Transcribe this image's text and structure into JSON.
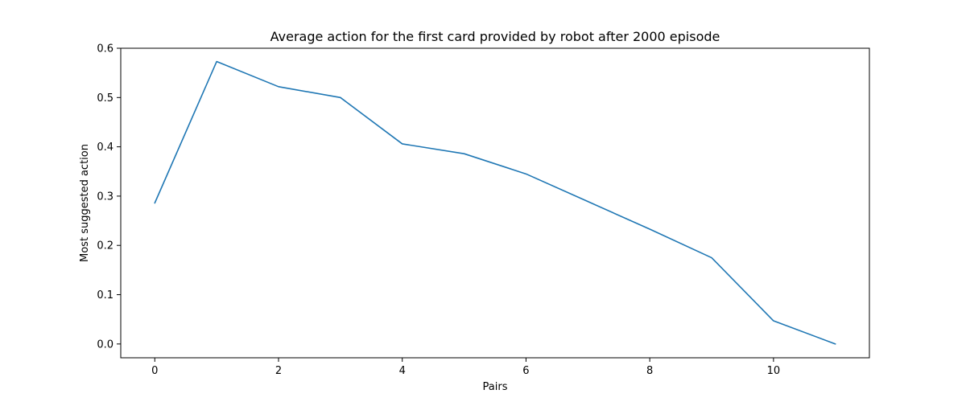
{
  "chart_data": {
    "type": "line",
    "title": "Average action for the first card provided by robot after 2000 episode",
    "xlabel": "Pairs",
    "ylabel": "Most suggested action",
    "xlim": [
      -0.55,
      11.55
    ],
    "ylim": [
      -0.028,
      0.6
    ],
    "x_ticks": [
      0,
      2,
      4,
      6,
      8,
      10
    ],
    "x_tick_labels": [
      "0",
      "2",
      "4",
      "6",
      "8",
      "10"
    ],
    "y_ticks": [
      0.0,
      0.1,
      0.2,
      0.3,
      0.4,
      0.5,
      0.6
    ],
    "y_tick_labels": [
      "0.0",
      "0.1",
      "0.2",
      "0.3",
      "0.4",
      "0.5",
      "0.6"
    ],
    "grid": false,
    "legend": "none",
    "series": [
      {
        "color": "#1f77b4",
        "x": [
          0,
          1,
          2,
          3,
          4,
          5,
          6,
          7,
          8,
          9,
          10,
          11
        ],
        "y": [
          0.286,
          0.573,
          0.522,
          0.5,
          0.406,
          0.386,
          0.345,
          0.289,
          0.233,
          0.175,
          0.047,
          0.0
        ]
      }
    ]
  }
}
